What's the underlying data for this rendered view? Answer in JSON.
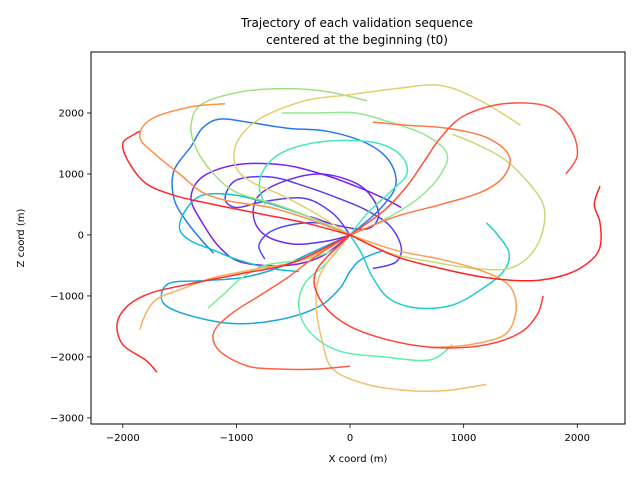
{
  "chart_data": {
    "type": "line",
    "title_line1": "Trajectory of each validation sequence",
    "title_line2": "centered at the beginning (t0)",
    "xlabel": "X coord (m)",
    "ylabel": "Z coord (m)",
    "xlim": [
      -2280,
      2420
    ],
    "ylim": [
      -3100,
      3000
    ],
    "xticks": [
      -2000,
      -1000,
      0,
      1000,
      2000
    ],
    "yticks": [
      -3000,
      -2000,
      -1000,
      0,
      1000,
      2000
    ],
    "grid": false,
    "series": [
      {
        "color": "#5a3cf5",
        "points": [
          [
            0,
            0
          ],
          [
            -150,
            350
          ],
          [
            -400,
            600
          ],
          [
            -750,
            550
          ],
          [
            -1000,
            450
          ],
          [
            -1100,
            600
          ],
          [
            -1000,
            900
          ],
          [
            -700,
            950
          ],
          [
            -400,
            800
          ],
          [
            -100,
            600
          ],
          [
            150,
            400
          ],
          [
            350,
            150
          ],
          [
            450,
            -200
          ],
          [
            400,
            -450
          ],
          [
            200,
            -550
          ]
        ]
      },
      {
        "color": "#6a2cf2",
        "points": [
          [
            0,
            0
          ],
          [
            -200,
            -100
          ],
          [
            -500,
            -150
          ],
          [
            -750,
            0
          ],
          [
            -850,
            300
          ],
          [
            -800,
            650
          ],
          [
            -550,
            900
          ],
          [
            -250,
            1000
          ],
          [
            50,
            850
          ],
          [
            200,
            600
          ],
          [
            250,
            300
          ],
          [
            150,
            100
          ],
          [
            -100,
            150
          ],
          [
            -350,
            300
          ]
        ]
      },
      {
        "color": "#4d4df7",
        "points": [
          [
            0,
            0
          ],
          [
            -300,
            200
          ],
          [
            -650,
            100
          ],
          [
            -800,
            -150
          ],
          [
            -750,
            -400
          ]
        ]
      },
      {
        "color": "#7a22ee",
        "points": [
          [
            0,
            0
          ],
          [
            -250,
            -350
          ],
          [
            -550,
            -500
          ],
          [
            -950,
            -450
          ],
          [
            -1150,
            -200
          ],
          [
            -1300,
            200
          ],
          [
            -1400,
            600
          ],
          [
            -1300,
            950
          ],
          [
            -1000,
            1150
          ],
          [
            -600,
            1150
          ],
          [
            -250,
            1000
          ],
          [
            50,
            800
          ],
          [
            300,
            600
          ],
          [
            450,
            450
          ]
        ]
      },
      {
        "color": "#2a78ee",
        "points": [
          [
            0,
            0
          ],
          [
            250,
            400
          ],
          [
            400,
            800
          ],
          [
            350,
            1200
          ],
          [
            150,
            1500
          ],
          [
            -200,
            1700
          ],
          [
            -550,
            1750
          ],
          [
            -900,
            1850
          ],
          [
            -1150,
            1900
          ],
          [
            -1300,
            1750
          ],
          [
            -1400,
            1450
          ],
          [
            -1550,
            1050
          ],
          [
            -1550,
            600
          ],
          [
            -1450,
            250
          ],
          [
            -1300,
            -100
          ],
          [
            -1200,
            -300
          ]
        ]
      },
      {
        "color": "#18a8de",
        "points": [
          [
            0,
            0
          ],
          [
            -350,
            -300
          ],
          [
            -650,
            -550
          ],
          [
            -950,
            -700
          ],
          [
            -1300,
            -750
          ],
          [
            -1600,
            -800
          ],
          [
            -1650,
            -1100
          ],
          [
            -1450,
            -1300
          ],
          [
            -1050,
            -1450
          ],
          [
            -650,
            -1400
          ],
          [
            -300,
            -1200
          ],
          [
            -100,
            -900
          ],
          [
            0,
            -600
          ],
          [
            100,
            -400
          ],
          [
            300,
            -250
          ]
        ]
      },
      {
        "color": "#10c0d2",
        "points": [
          [
            0,
            0
          ],
          [
            -300,
            250
          ],
          [
            -600,
            450
          ],
          [
            -1000,
            650
          ],
          [
            -1300,
            650
          ],
          [
            -1450,
            400
          ],
          [
            -1500,
            100
          ],
          [
            -1400,
            -100
          ],
          [
            -1200,
            -250
          ],
          [
            -1000,
            -400
          ],
          [
            -700,
            -550
          ],
          [
            -450,
            -600
          ]
        ]
      },
      {
        "color": "#20d0c8",
        "points": [
          [
            0,
            0
          ],
          [
            100,
            -300
          ],
          [
            200,
            -700
          ],
          [
            350,
            -1050
          ],
          [
            600,
            -1200
          ],
          [
            900,
            -1150
          ],
          [
            1150,
            -900
          ],
          [
            1350,
            -600
          ],
          [
            1400,
            -300
          ],
          [
            1300,
            0
          ],
          [
            1200,
            200
          ]
        ]
      },
      {
        "color": "#48e8b8",
        "points": [
          [
            0,
            0
          ],
          [
            150,
            350
          ],
          [
            350,
            700
          ],
          [
            500,
            1000
          ],
          [
            450,
            1300
          ],
          [
            250,
            1500
          ],
          [
            -50,
            1550
          ],
          [
            -350,
            1500
          ],
          [
            -600,
            1350
          ],
          [
            -750,
            1100
          ],
          [
            -800,
            800
          ],
          [
            -750,
            500
          ]
        ]
      },
      {
        "color": "#5af0a8",
        "points": [
          [
            0,
            0
          ],
          [
            -200,
            -450
          ],
          [
            -400,
            -800
          ],
          [
            -450,
            -1200
          ],
          [
            -350,
            -1600
          ],
          [
            -100,
            -1900
          ],
          [
            300,
            -2000
          ],
          [
            700,
            -2050
          ],
          [
            900,
            -1800
          ]
        ]
      },
      {
        "color": "#78f096",
        "points": [
          [
            0,
            0
          ],
          [
            -150,
            -250
          ],
          [
            -400,
            -400
          ],
          [
            -750,
            -500
          ],
          [
            -950,
            -700
          ],
          [
            -1100,
            -950
          ],
          [
            -1250,
            -1200
          ]
        ]
      },
      {
        "color": "#90e890",
        "points": [
          [
            0,
            0
          ],
          [
            300,
            250
          ],
          [
            600,
            600
          ],
          [
            800,
            1000
          ],
          [
            850,
            1350
          ],
          [
            650,
            1650
          ],
          [
            350,
            1850
          ],
          [
            50,
            2000
          ],
          [
            -300,
            2000
          ],
          [
            -600,
            2000
          ]
        ]
      },
      {
        "color": "#a0e080",
        "points": [
          [
            0,
            0
          ],
          [
            -300,
            250
          ],
          [
            -650,
            500
          ],
          [
            -1000,
            700
          ],
          [
            -1200,
            1000
          ],
          [
            -1350,
            1400
          ],
          [
            -1400,
            1800
          ],
          [
            -1300,
            2150
          ],
          [
            -950,
            2350
          ],
          [
            -550,
            2400
          ],
          [
            -200,
            2350
          ],
          [
            150,
            2200
          ]
        ]
      },
      {
        "color": "#c8d878",
        "points": [
          [
            0,
            0
          ],
          [
            350,
            -300
          ],
          [
            750,
            -450
          ],
          [
            1100,
            -550
          ],
          [
            1400,
            -550
          ],
          [
            1600,
            -300
          ],
          [
            1700,
            100
          ],
          [
            1700,
            500
          ],
          [
            1550,
            900
          ],
          [
            1350,
            1250
          ],
          [
            1100,
            1500
          ],
          [
            900,
            1650
          ]
        ]
      },
      {
        "color": "#e0d070",
        "points": [
          [
            0,
            0
          ],
          [
            -300,
            350
          ],
          [
            -600,
            650
          ],
          [
            -850,
            850
          ],
          [
            -1000,
            1100
          ],
          [
            -1000,
            1500
          ],
          [
            -800,
            1900
          ],
          [
            -400,
            2200
          ],
          [
            0,
            2300
          ],
          [
            400,
            2400
          ],
          [
            800,
            2450
          ],
          [
            1150,
            2200
          ],
          [
            1500,
            1800
          ]
        ]
      },
      {
        "color": "#f0c070",
        "points": [
          [
            0,
            0
          ],
          [
            -250,
            -600
          ],
          [
            -300,
            -1100
          ],
          [
            -250,
            -1700
          ],
          [
            -150,
            -2200
          ],
          [
            150,
            -2450
          ],
          [
            500,
            -2550
          ],
          [
            850,
            -2550
          ],
          [
            1200,
            -2450
          ]
        ]
      },
      {
        "color": "#f8b060",
        "points": [
          [
            0,
            0
          ],
          [
            -400,
            -400
          ],
          [
            -800,
            -550
          ],
          [
            -1200,
            -700
          ],
          [
            -1500,
            -900
          ],
          [
            -1700,
            -1050
          ],
          [
            -1800,
            -1300
          ],
          [
            -1850,
            -1550
          ]
        ]
      },
      {
        "color": "#fca050",
        "points": [
          [
            0,
            0
          ],
          [
            400,
            -250
          ],
          [
            800,
            -400
          ],
          [
            1100,
            -550
          ],
          [
            1350,
            -750
          ],
          [
            1450,
            -1000
          ],
          [
            1450,
            -1350
          ],
          [
            1350,
            -1650
          ],
          [
            1050,
            -1800
          ],
          [
            700,
            -1850
          ]
        ]
      },
      {
        "color": "#ff9048",
        "points": [
          [
            0,
            0
          ],
          [
            -350,
            250
          ],
          [
            -700,
            450
          ],
          [
            -1050,
            550
          ],
          [
            -1300,
            700
          ],
          [
            -1500,
            1000
          ],
          [
            -1700,
            1300
          ],
          [
            -1850,
            1600
          ],
          [
            -1750,
            1900
          ],
          [
            -1400,
            2100
          ],
          [
            -1100,
            2150
          ]
        ]
      },
      {
        "color": "#ff7844",
        "points": [
          [
            0,
            0
          ],
          [
            400,
            300
          ],
          [
            800,
            500
          ],
          [
            1150,
            700
          ],
          [
            1350,
            950
          ],
          [
            1400,
            1300
          ],
          [
            1200,
            1600
          ],
          [
            850,
            1750
          ],
          [
            500,
            1800
          ],
          [
            200,
            1850
          ]
        ]
      },
      {
        "color": "#ff6240",
        "points": [
          [
            0,
            0
          ],
          [
            -300,
            -350
          ],
          [
            -550,
            -700
          ],
          [
            -800,
            -1000
          ],
          [
            -1050,
            -1300
          ],
          [
            -1200,
            -1600
          ],
          [
            -1150,
            -1900
          ],
          [
            -900,
            -2150
          ],
          [
            -600,
            -2200
          ],
          [
            -300,
            -2200
          ],
          [
            0,
            -2150
          ]
        ]
      },
      {
        "color": "#ff503c",
        "points": [
          [
            0,
            0
          ],
          [
            300,
            400
          ],
          [
            500,
            800
          ],
          [
            650,
            1200
          ],
          [
            800,
            1600
          ],
          [
            1000,
            1950
          ],
          [
            1350,
            2150
          ],
          [
            1750,
            2100
          ],
          [
            1950,
            1700
          ],
          [
            2000,
            1300
          ],
          [
            1900,
            1000
          ]
        ]
      },
      {
        "color": "#ff3e36",
        "points": [
          [
            0,
            0
          ],
          [
            -300,
            -600
          ],
          [
            -250,
            -1100
          ],
          [
            0,
            -1500
          ],
          [
            400,
            -1750
          ],
          [
            800,
            -1850
          ],
          [
            1200,
            -1800
          ],
          [
            1500,
            -1600
          ],
          [
            1650,
            -1300
          ],
          [
            1700,
            -1000
          ]
        ]
      },
      {
        "color": "#ff2e2e",
        "points": [
          [
            0,
            0
          ],
          [
            -500,
            -450
          ],
          [
            -1000,
            -650
          ],
          [
            -1400,
            -800
          ],
          [
            -1750,
            -950
          ],
          [
            -1950,
            -1150
          ],
          [
            -2050,
            -1450
          ],
          [
            -2000,
            -1800
          ],
          [
            -1800,
            -2050
          ],
          [
            -1700,
            -2250
          ]
        ]
      },
      {
        "color": "#ff2a2a",
        "points": [
          [
            0,
            0
          ],
          [
            -400,
            200
          ],
          [
            -800,
            350
          ],
          [
            -1200,
            500
          ],
          [
            -1550,
            650
          ],
          [
            -1800,
            850
          ],
          [
            -1950,
            1200
          ],
          [
            -2000,
            1500
          ],
          [
            -1900,
            1650
          ],
          [
            -1850,
            1700
          ]
        ]
      },
      {
        "color": "#ff2424",
        "points": [
          [
            0,
            0
          ],
          [
            400,
            -350
          ],
          [
            800,
            -550
          ],
          [
            1200,
            -700
          ],
          [
            1600,
            -750
          ],
          [
            1900,
            -650
          ],
          [
            2100,
            -450
          ],
          [
            2200,
            -200
          ],
          [
            2200,
            200
          ],
          [
            2150,
            500
          ],
          [
            2200,
            800
          ]
        ]
      }
    ]
  }
}
